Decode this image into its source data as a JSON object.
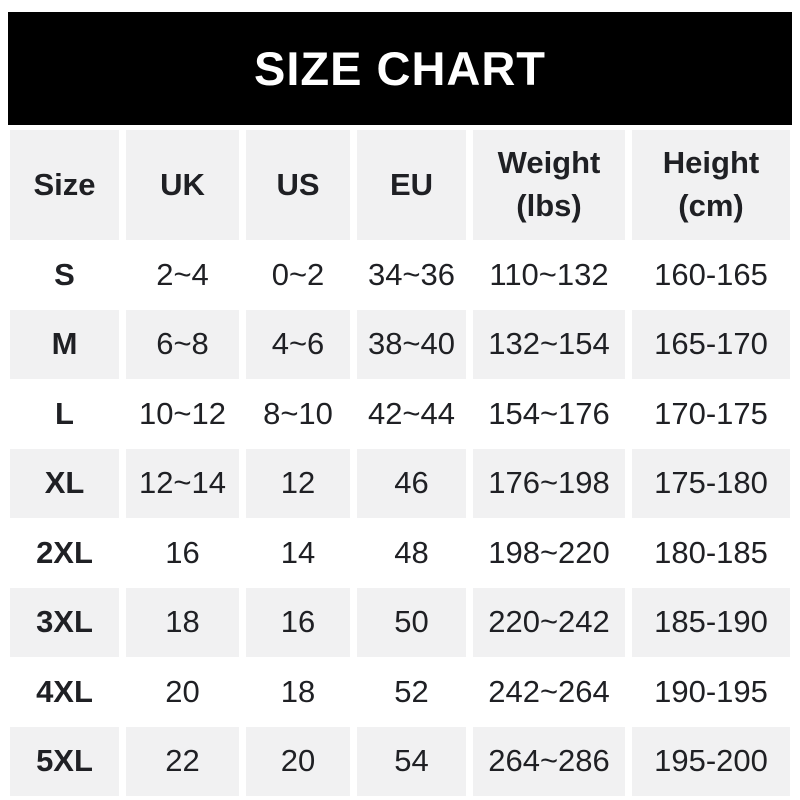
{
  "banner": {
    "title": "SIZE CHART"
  },
  "table": {
    "header": {
      "size": "Size",
      "uk": "UK",
      "us": "US",
      "eu": "EU",
      "weight_line1": "Weight",
      "weight_line2": "(lbs)",
      "height_line1": "Height",
      "height_line2": "(cm)"
    },
    "rows": [
      {
        "size": "S",
        "uk": "2~4",
        "us": "0~2",
        "eu": "34~36",
        "weight": "110~132",
        "height": "160-165"
      },
      {
        "size": "M",
        "uk": "6~8",
        "us": "4~6",
        "eu": "38~40",
        "weight": "132~154",
        "height": "165-170"
      },
      {
        "size": "L",
        "uk": "10~12",
        "us": "8~10",
        "eu": "42~44",
        "weight": "154~176",
        "height": "170-175"
      },
      {
        "size": "XL",
        "uk": "12~14",
        "us": "12",
        "eu": "46",
        "weight": "176~198",
        "height": "175-180"
      },
      {
        "size": "2XL",
        "uk": "16",
        "us": "14",
        "eu": "48",
        "weight": "198~220",
        "height": "180-185"
      },
      {
        "size": "3XL",
        "uk": "18",
        "us": "16",
        "eu": "50",
        "weight": "220~242",
        "height": "185-190"
      },
      {
        "size": "4XL",
        "uk": "20",
        "us": "18",
        "eu": "52",
        "weight": "242~264",
        "height": "190-195"
      },
      {
        "size": "5XL",
        "uk": "22",
        "us": "20",
        "eu": "54",
        "weight": "264~286",
        "height": "195-200"
      }
    ]
  },
  "colors": {
    "banner_bg": "#000000",
    "banner_text": "#ffffff",
    "shaded_cell": "#f1f1f2",
    "text": "#1f2024",
    "page_bg": "#ffffff"
  },
  "chart_data": {
    "type": "table",
    "title": "SIZE CHART",
    "columns": [
      "Size",
      "UK",
      "US",
      "EU",
      "Weight (lbs)",
      "Height (cm)"
    ],
    "rows": [
      [
        "S",
        "2~4",
        "0~2",
        "34~36",
        "110~132",
        "160-165"
      ],
      [
        "M",
        "6~8",
        "4~6",
        "38~40",
        "132~154",
        "165-170"
      ],
      [
        "L",
        "10~12",
        "8~10",
        "42~44",
        "154~176",
        "170-175"
      ],
      [
        "XL",
        "12~14",
        "12",
        "46",
        "176~198",
        "175-180"
      ],
      [
        "2XL",
        "16",
        "14",
        "48",
        "198~220",
        "180-185"
      ],
      [
        "3XL",
        "18",
        "16",
        "50",
        "220~242",
        "185-190"
      ],
      [
        "4XL",
        "20",
        "18",
        "52",
        "242~264",
        "190-195"
      ],
      [
        "5XL",
        "22",
        "20",
        "54",
        "264~286",
        "195-200"
      ]
    ],
    "layout": {
      "shaded_rows": [
        "header",
        "M",
        "XL",
        "3XL",
        "5XL"
      ],
      "range_separator_sizes": "~",
      "range_separator_height": "-"
    }
  }
}
